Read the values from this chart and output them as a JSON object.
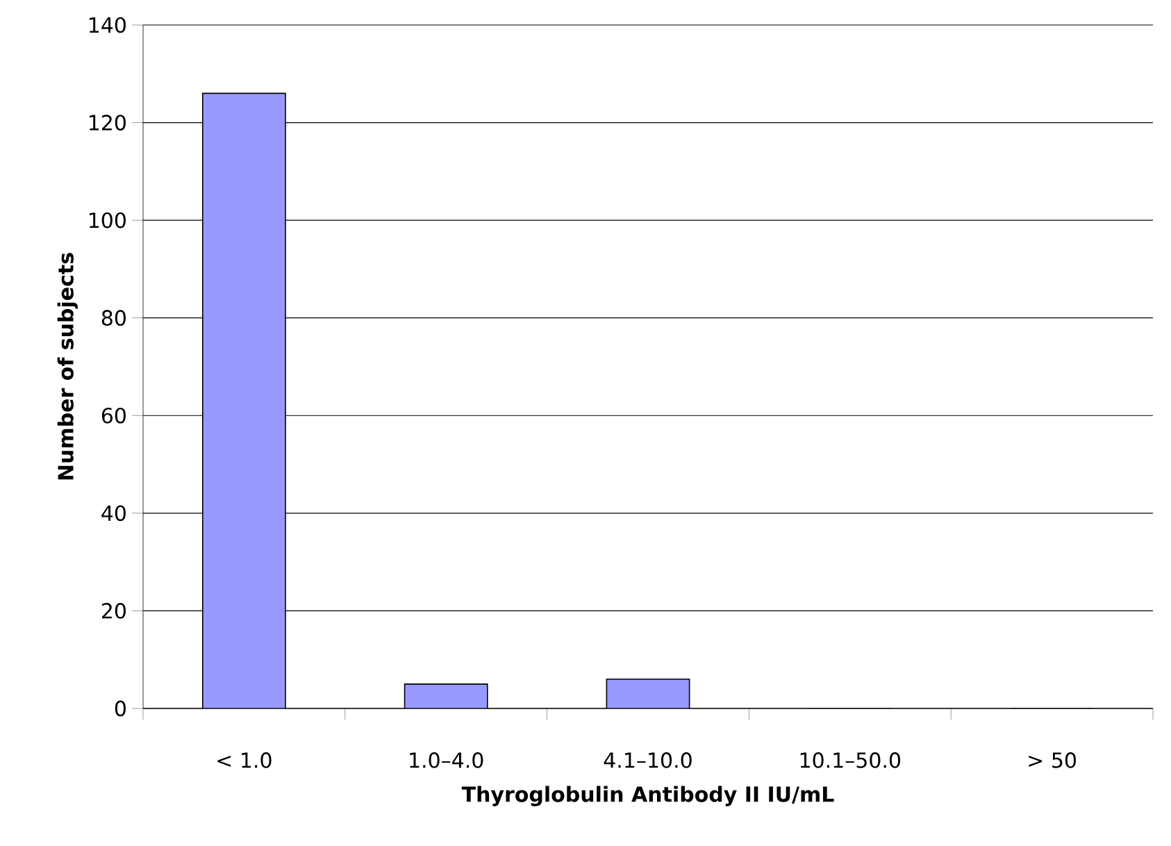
{
  "chart_data": {
    "type": "bar",
    "xlabel": "Thyroglobulin Antibody II IU/mL",
    "ylabel": "Number of subjects",
    "categories": [
      "< 1.0",
      "1.0–4.0",
      "4.1–10.0",
      "10.1–50.0",
      "> 50"
    ],
    "values": [
      126,
      5,
      6,
      0,
      0
    ],
    "color": "#9999ff",
    "ylim": [
      0,
      140
    ],
    "yticks": [
      0,
      20,
      40,
      60,
      80,
      100,
      120,
      140
    ],
    "grid": "y"
  }
}
